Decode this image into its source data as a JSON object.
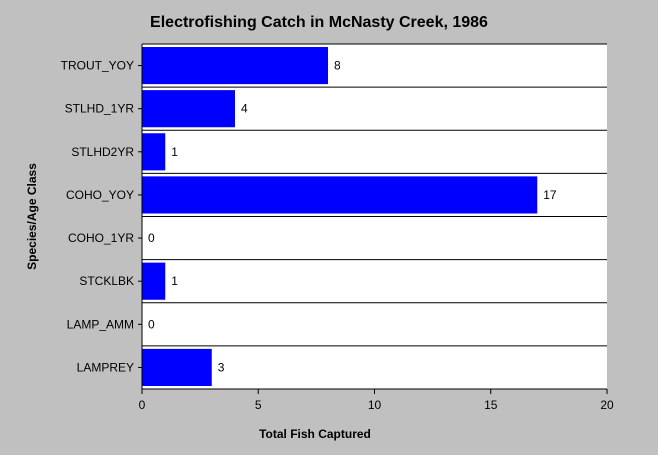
{
  "chart_data": {
    "type": "bar",
    "orientation": "horizontal",
    "title": "Electrofishing Catch in McNasty Creek, 1986",
    "xlabel": "Total Fish Captured",
    "ylabel": "Species/Age Class",
    "categories": [
      "TROUT_YOY",
      "STLHD_1YR",
      "STLHD2YR",
      "COHO_YOY",
      "COHO_1YR",
      "STCKLBK",
      "LAMP_AMM",
      "LAMPREY"
    ],
    "values": [
      8,
      4,
      1,
      17,
      0,
      1,
      0,
      3
    ],
    "data_labels": [
      "8",
      "4",
      "1",
      "17",
      "0",
      "1",
      "0",
      "3"
    ],
    "xlim": [
      0,
      20
    ],
    "xticks": [
      "0",
      "5",
      "10",
      "15",
      "20"
    ],
    "grid": "horizontal category separators",
    "bar_color": "#0000ff",
    "plot_background": "#ffffff",
    "page_background": "#c0c0c0"
  }
}
